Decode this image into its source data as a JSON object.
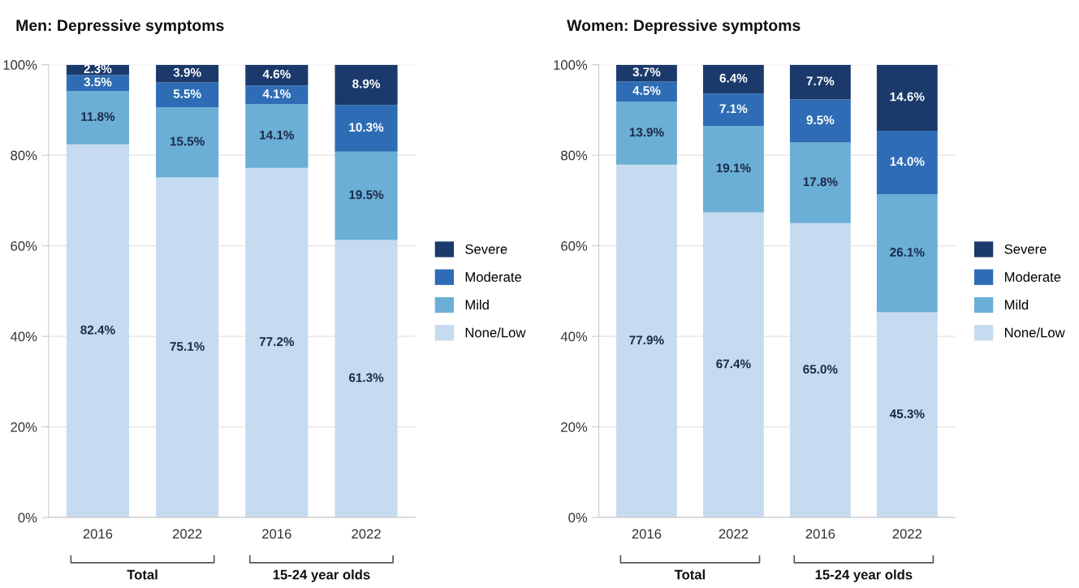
{
  "chart_data": [
    {
      "type": "bar",
      "title": "Men: Depressive symptoms",
      "stacked": true,
      "categories": [
        "2016",
        "2022",
        "2016",
        "2022"
      ],
      "ylim": [
        0,
        1
      ],
      "yticks": [
        {
          "value": 0,
          "label": "0%"
        },
        {
          "value": 0.2,
          "label": "20%"
        },
        {
          "value": 0.4,
          "label": "40%"
        },
        {
          "value": 0.6,
          "label": "60%"
        },
        {
          "value": 0.8,
          "label": "80%"
        },
        {
          "value": 1,
          "label": "100%"
        }
      ],
      "grid": "y",
      "legend": "right",
      "annotations": [
        "Total",
        "15-24 year olds"
      ],
      "series": [
        {
          "name": "None/Low",
          "color": "#c6dbef",
          "values": [
            0.824,
            0.751,
            0.772,
            0.613
          ],
          "value_labels": [
            "82.4%",
            "75.1%",
            "77.2%",
            "61.3%"
          ]
        },
        {
          "name": "Mild",
          "color": "#6baed6",
          "values": [
            0.118,
            0.155,
            0.141,
            0.195
          ],
          "value_labels": [
            "11.8%",
            "15.5%",
            "14.1%",
            "19.5%"
          ]
        },
        {
          "name": "Moderate",
          "color": "#2e6db5",
          "values": [
            0.035,
            0.055,
            0.041,
            0.103
          ],
          "value_labels": [
            "3.5%",
            "5.5%",
            "4.1%",
            "10.3%"
          ]
        },
        {
          "name": "Severe",
          "color": "#1b3a6b",
          "values": [
            0.023,
            0.039,
            0.046,
            0.089
          ],
          "value_labels": [
            "2.3%",
            "3.9%",
            "4.6%",
            "8.9%"
          ]
        }
      ]
    },
    {
      "type": "bar",
      "title": "Women: Depressive symptoms",
      "stacked": true,
      "categories": [
        "2016",
        "2022",
        "2016",
        "2022"
      ],
      "ylim": [
        0,
        1
      ],
      "yticks": [
        {
          "value": 0,
          "label": "0%"
        },
        {
          "value": 0.2,
          "label": "20%"
        },
        {
          "value": 0.4,
          "label": "40%"
        },
        {
          "value": 0.6,
          "label": "60%"
        },
        {
          "value": 0.8,
          "label": "80%"
        },
        {
          "value": 1,
          "label": "100%"
        }
      ],
      "grid": "y",
      "legend": "right",
      "annotations": [
        "Total",
        "15-24 year olds"
      ],
      "series": [
        {
          "name": "None/Low",
          "color": "#c6dbef",
          "values": [
            0.779,
            0.674,
            0.65,
            0.453
          ],
          "value_labels": [
            "77.9%",
            "67.4%",
            "65.0%",
            "45.3%"
          ]
        },
        {
          "name": "Mild",
          "color": "#6baed6",
          "values": [
            0.139,
            0.191,
            0.178,
            0.261
          ],
          "value_labels": [
            "13.9%",
            "19.1%",
            "17.8%",
            "26.1%"
          ]
        },
        {
          "name": "Moderate",
          "color": "#2e6db5",
          "values": [
            0.045,
            0.071,
            0.095,
            0.14
          ],
          "value_labels": [
            "4.5%",
            "7.1%",
            "9.5%",
            "14.0%"
          ]
        },
        {
          "name": "Severe",
          "color": "#1b3a6b",
          "values": [
            0.037,
            0.064,
            0.077,
            0.146
          ],
          "value_labels": [
            "3.7%",
            "6.4%",
            "7.7%",
            "14.6%"
          ]
        }
      ]
    }
  ]
}
